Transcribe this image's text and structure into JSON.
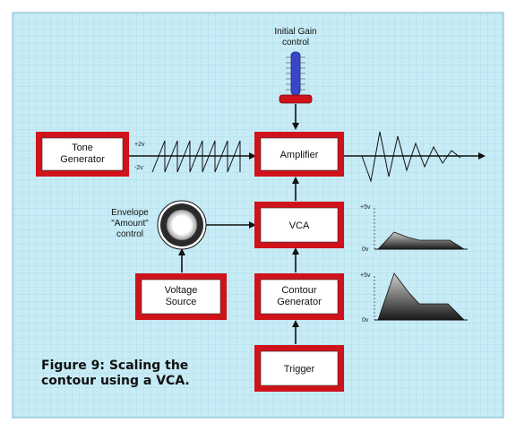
{
  "colors": {
    "background": "#c8ecf6",
    "grid": "#a9d8e8",
    "frame": "#7fb7cf",
    "box_border": "#d0121b",
    "box_fill": "#ffffff",
    "line": "#111111",
    "fader": "#3a46c8",
    "fader_knob": "#d0121b"
  },
  "boxes": {
    "tone_generator": "Tone\nGenerator",
    "amplifier": "Amplifier",
    "vca": "VCA",
    "voltage_source": "Voltage\nSource",
    "contour_generator": "Contour\nGenerator",
    "trigger": "Trigger"
  },
  "labels": {
    "initial_gain": "Initial Gain\ncontrol",
    "envelope_amount": "Envelope\n\"Amount\"\ncontrol",
    "tone_plus": "+2v",
    "tone_minus": "-2v",
    "env1_top": "+5v",
    "env1_bottom": "0v",
    "env2_top": "+5v",
    "env2_bottom": "0v"
  },
  "caption": "Figure 9: Scaling the\ncontour using a VCA."
}
